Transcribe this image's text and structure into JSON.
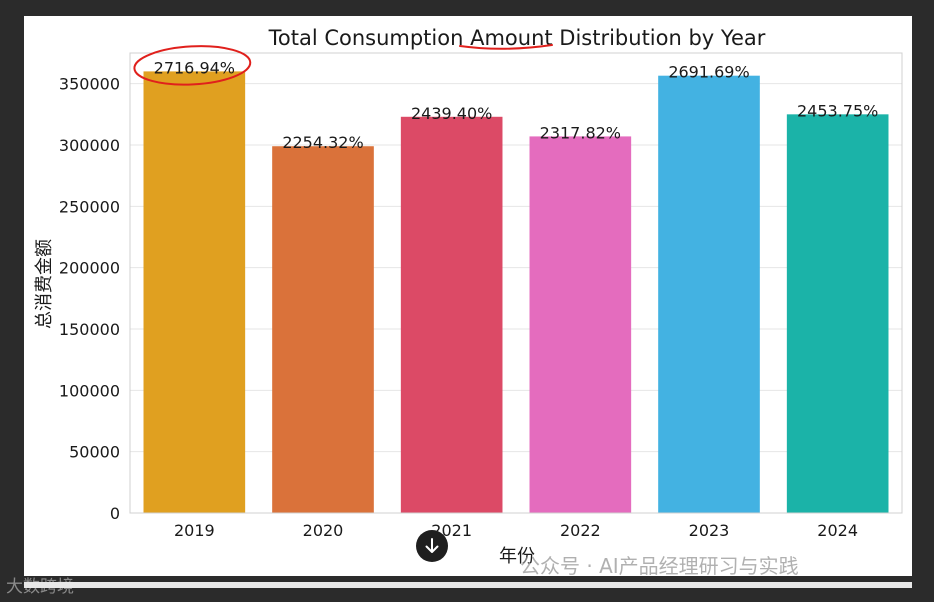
{
  "chart_data": {
    "type": "bar",
    "title": "Total Consumption Amount Distribution by Year",
    "xlabel": "年份",
    "ylabel": "总消费金额",
    "categories": [
      "2019",
      "2020",
      "2021",
      "2022",
      "2023",
      "2024"
    ],
    "values": [
      360000,
      299000,
      323000,
      307000,
      356500,
      325000
    ],
    "data_labels": [
      "2716.94%",
      "2254.32%",
      "2439.40%",
      "2317.82%",
      "2691.69%",
      "2453.75%"
    ],
    "colors": [
      "#E0A020",
      "#DA723A",
      "#DC4A66",
      "#E46CBE",
      "#43B2E2",
      "#1BB3A8"
    ],
    "ylim": [
      0,
      375000
    ],
    "yticks": [
      0,
      50000,
      100000,
      150000,
      200000,
      250000,
      300000,
      350000
    ],
    "grid": true,
    "annotation_color": "#e0201c"
  },
  "overlay": {
    "scroll_icon": "arrow-down-icon",
    "watermark": "公众号 · AI产品经理研习与实践",
    "corner_mark": "大数跨境"
  }
}
